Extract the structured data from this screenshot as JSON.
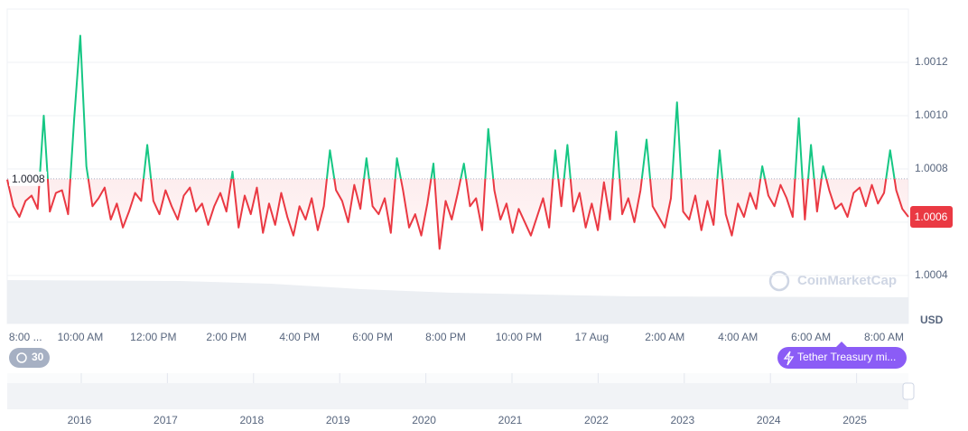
{
  "chart_data": {
    "type": "line",
    "currency": "USD",
    "watermark": "CoinMarketCap",
    "time_badge": "30",
    "event_label": "Tether Treasury mi...",
    "up_color": "#16c784",
    "down_color": "#ea3943",
    "ylim": [
      1.00022,
      1.0014
    ],
    "yticks": [
      1.0004,
      1.0006,
      1.0008,
      {
        "value": 1.001,
        "label": "1.0010"
      },
      1.0012
    ],
    "grid": true,
    "baseline": {
      "value": 1.000763,
      "label": "1.0008"
    },
    "current": {
      "value": 1.00062,
      "label": "1.0006"
    },
    "categories": [
      null,
      null,
      null,
      "8:00 ...",
      null,
      null,
      null,
      null,
      null,
      null,
      null,
      null,
      "10:00 AM",
      null,
      null,
      null,
      null,
      null,
      null,
      null,
      null,
      null,
      null,
      null,
      "12:00 PM",
      null,
      null,
      null,
      null,
      null,
      null,
      null,
      null,
      null,
      null,
      null,
      "2:00 PM",
      null,
      null,
      null,
      null,
      null,
      null,
      null,
      null,
      null,
      null,
      null,
      "4:00 PM",
      null,
      null,
      null,
      null,
      null,
      null,
      null,
      null,
      null,
      null,
      null,
      "6:00 PM",
      null,
      null,
      null,
      null,
      null,
      null,
      null,
      null,
      null,
      null,
      null,
      "8:00 PM",
      null,
      null,
      null,
      null,
      null,
      null,
      null,
      null,
      null,
      null,
      null,
      "10:00 PM",
      null,
      null,
      null,
      null,
      null,
      null,
      null,
      null,
      null,
      null,
      null,
      "17 Aug",
      null,
      null,
      null,
      null,
      null,
      null,
      null,
      null,
      null,
      null,
      null,
      "2:00 AM",
      null,
      null,
      null,
      null,
      null,
      null,
      null,
      null,
      null,
      null,
      null,
      "4:00 AM",
      null,
      null,
      null,
      null,
      null,
      null,
      null,
      null,
      null,
      null,
      null,
      "6:00 AM",
      null,
      null,
      null,
      null,
      null,
      null,
      null,
      null,
      null,
      null,
      null,
      "8:00 AM",
      null,
      null,
      null,
      null
    ],
    "values": [
      1.00076,
      1.00066,
      1.00062,
      1.00068,
      1.0007,
      1.00065,
      1.001,
      1.00064,
      1.00071,
      1.00072,
      1.00063,
      1.00099,
      1.0013,
      1.00081,
      1.00066,
      1.00069,
      1.00073,
      1.00061,
      1.00067,
      1.00058,
      1.00064,
      1.00071,
      1.00068,
      1.00089,
      1.00068,
      1.00063,
      1.00072,
      1.00066,
      1.00061,
      1.0007,
      1.00073,
      1.00064,
      1.00067,
      1.00059,
      1.00066,
      1.00071,
      1.00064,
      1.00079,
      1.00058,
      1.0007,
      1.00063,
      1.00073,
      1.00056,
      1.00067,
      1.00059,
      1.00071,
      1.00062,
      1.00055,
      1.00066,
      1.00061,
      1.00069,
      1.00057,
      1.00066,
      1.00087,
      1.00072,
      1.00068,
      1.0006,
      1.00074,
      1.00065,
      1.00084,
      1.00066,
      1.00063,
      1.00069,
      1.00056,
      1.00084,
      1.00072,
      1.00058,
      1.00063,
      1.00055,
      1.00067,
      1.00082,
      1.0005,
      1.00068,
      1.00061,
      1.00071,
      1.00082,
      1.00066,
      1.00069,
      1.00057,
      1.00095,
      1.00072,
      1.00061,
      1.00067,
      1.00056,
      1.00065,
      1.0006,
      1.00055,
      1.00062,
      1.00069,
      1.00058,
      1.00087,
      1.00066,
      1.00089,
      1.00064,
      1.00071,
      1.00058,
      1.00067,
      1.00057,
      1.00075,
      1.00061,
      1.00094,
      1.00063,
      1.00069,
      1.0006,
      1.00072,
      1.00091,
      1.00066,
      1.00062,
      1.00058,
      1.00069,
      1.00105,
      1.00064,
      1.00061,
      1.0007,
      1.00057,
      1.00068,
      1.00059,
      1.00087,
      1.00063,
      1.00055,
      1.00067,
      1.00062,
      1.00071,
      1.00065,
      1.00081,
      1.0007,
      1.00066,
      1.00074,
      1.00069,
      1.00062,
      1.00099,
      1.00061,
      1.00089,
      1.00064,
      1.00081,
      1.00072,
      1.00065,
      1.00067,
      1.00062,
      1.00071,
      1.00073,
      1.00066,
      1.00074,
      1.00067,
      1.00071,
      1.00087,
      1.00072,
      1.00065,
      1.00062
    ],
    "navigator_years": [
      "2016",
      "2017",
      "2018",
      "2019",
      "2020",
      "2021",
      "2022",
      "2023",
      "2024",
      "2025"
    ]
  }
}
